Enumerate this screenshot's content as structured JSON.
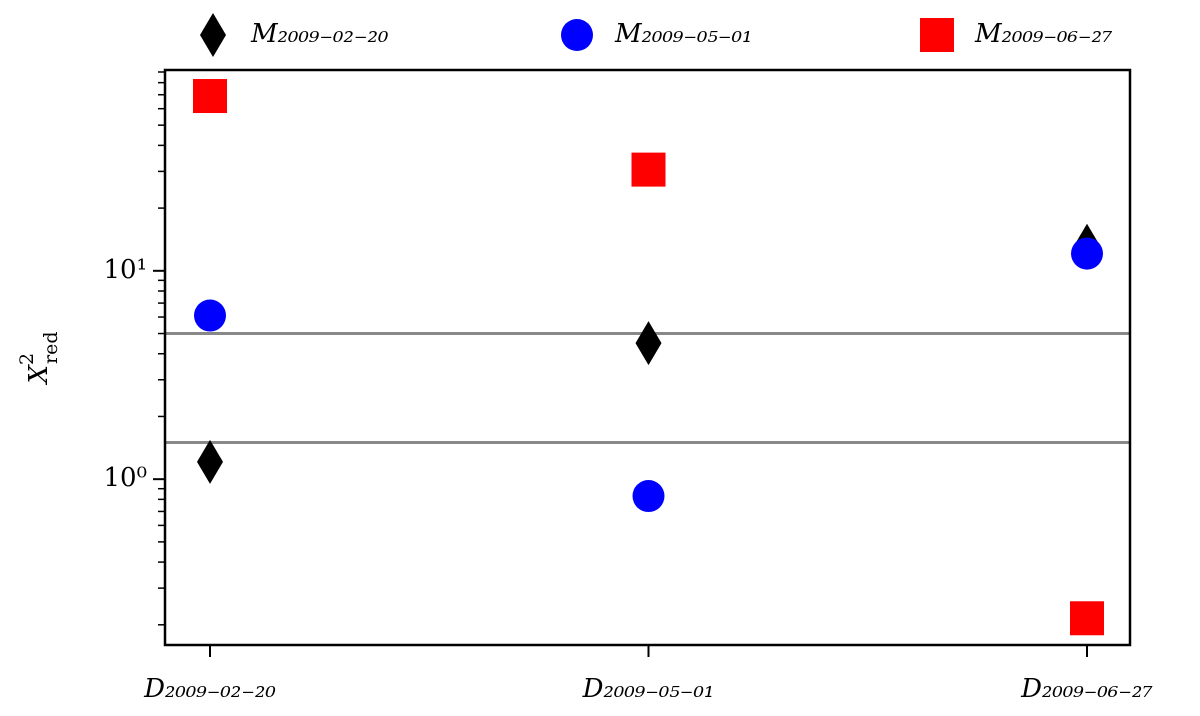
{
  "chart_data": {
    "type": "scatter",
    "categories": [
      "D₂₀₀₉₋₀₂₋₂₀",
      "D₂₀₀₉₋₀₅₋₀₁",
      "D₂₀₀₉₋₀₆₋₂₇"
    ],
    "ylabel": {
      "base": "X",
      "sup": "2",
      "sub": "red"
    },
    "log_y": true,
    "ylim": [
      0.16,
      92
    ],
    "yticks": [
      {
        "value": 1,
        "label": "10⁰"
      },
      {
        "value": 10,
        "label": "10¹"
      }
    ],
    "minor_yticks": [
      0.2,
      0.3,
      0.4,
      0.5,
      0.6,
      0.7,
      0.8,
      0.9,
      2,
      3,
      4,
      5,
      6,
      7,
      8,
      9,
      20,
      30,
      40,
      50,
      60,
      70,
      80,
      90
    ],
    "hlines": [
      5,
      1.5
    ],
    "hline_color": "#888888",
    "legend": "top",
    "series": [
      {
        "name": "M₂₀₀₉₋₀₂₋₂₀",
        "marker": "diamond",
        "color": "#000000",
        "values": [
          1.21,
          4.5,
          13.2
        ]
      },
      {
        "name": "M₂₀₀₉₋₀₅₋₀₁",
        "marker": "circle",
        "color": "#0000ff",
        "values": [
          6.1,
          0.83,
          12.1
        ]
      },
      {
        "name": "M₂₀₀₉₋₀₆₋₂₇",
        "marker": "square",
        "color": "#ff0000",
        "values": [
          69,
          30.6,
          0.215
        ]
      }
    ]
  }
}
